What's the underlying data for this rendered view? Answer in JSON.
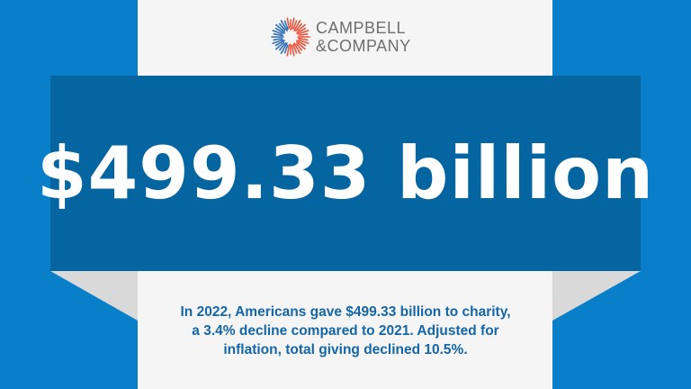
{
  "logo": {
    "icon": "campbell-sunburst-icon",
    "line1": "CAMPBELL",
    "line2": "&COMPANY",
    "colors": {
      "red": "#e8553f",
      "blue": "#2f6fb6",
      "text": "#6f6f6f"
    }
  },
  "headline": "$499.33 billion",
  "caption": {
    "line1": "In 2022, Americans gave $499.33 billion to charity,",
    "line2": "a 3.4% decline compared to 2021. Adjusted for",
    "line3": "inflation, total giving declined 10.5%."
  },
  "colors": {
    "background": "#0a7fc9",
    "panel": "#f5f5f5",
    "banner": "#0565a0",
    "fold": "#d9d9d9",
    "caption": "#1566a6"
  }
}
